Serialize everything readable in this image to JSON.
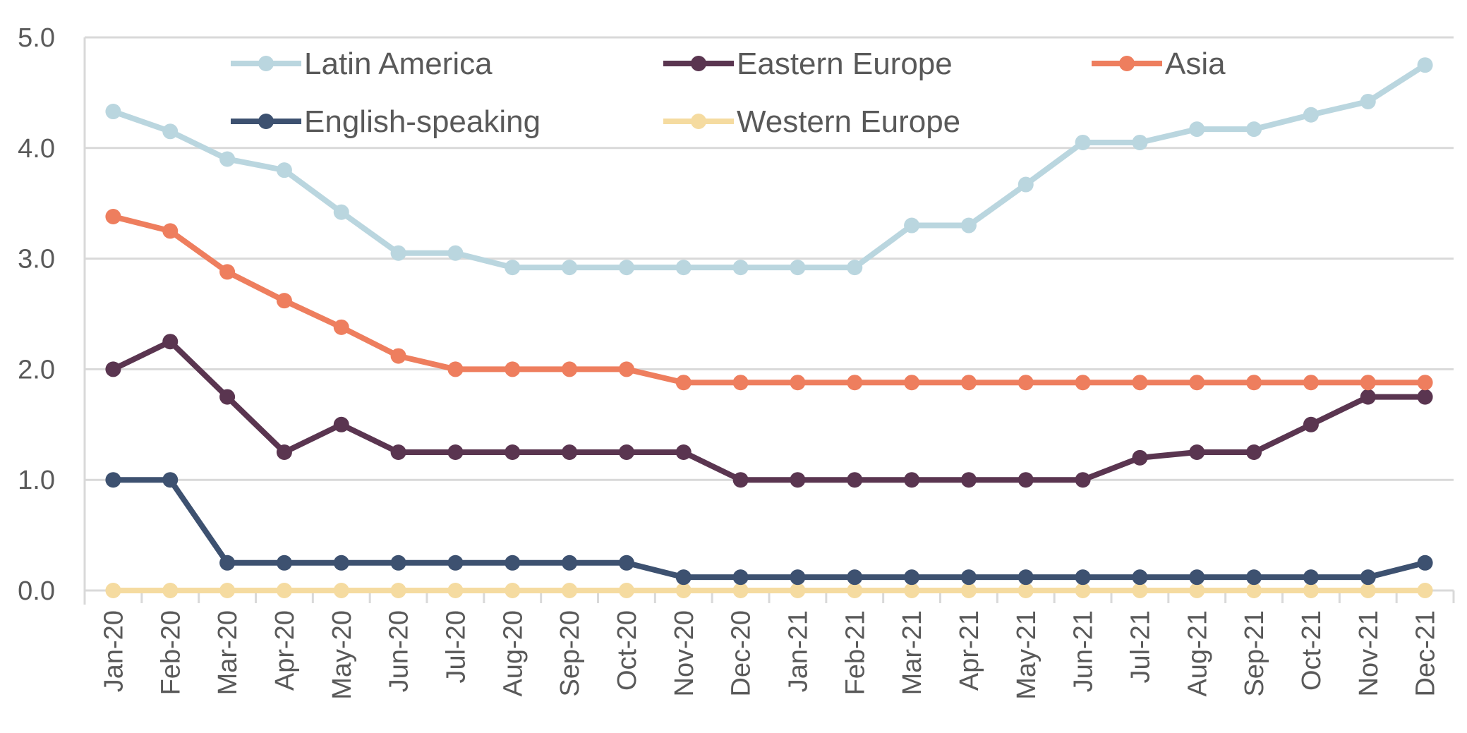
{
  "chart_data": {
    "type": "line",
    "categories": [
      "Jan-20",
      "Feb-20",
      "Mar-20",
      "Apr-20",
      "May-20",
      "Jun-20",
      "Jul-20",
      "Aug-20",
      "Sep-20",
      "Oct-20",
      "Nov-20",
      "Dec-20",
      "Jan-21",
      "Feb-21",
      "Mar-21",
      "Apr-21",
      "May-21",
      "Jun-21",
      "Jul-21",
      "Aug-21",
      "Sep-21",
      "Oct-21",
      "Nov-21",
      "Dec-21"
    ],
    "ylim": [
      0,
      5
    ],
    "yticks": [
      "0.0",
      "1.0",
      "2.0",
      "3.0",
      "4.0",
      "5.0"
    ],
    "grid": true,
    "legend": "top",
    "series": [
      {
        "name": "Latin America",
        "color": "#BAD6DF",
        "values": [
          4.33,
          4.15,
          3.9,
          3.8,
          3.42,
          3.05,
          3.05,
          2.92,
          2.92,
          2.92,
          2.92,
          2.92,
          2.92,
          2.92,
          3.3,
          3.3,
          3.67,
          4.05,
          4.05,
          4.17,
          4.17,
          4.3,
          4.42,
          4.75
        ]
      },
      {
        "name": "Eastern Europe",
        "color": "#5A3550",
        "values": [
          2.0,
          2.25,
          1.75,
          1.25,
          1.5,
          1.25,
          1.25,
          1.25,
          1.25,
          1.25,
          1.25,
          1.0,
          1.0,
          1.0,
          1.0,
          1.0,
          1.0,
          1.0,
          1.2,
          1.25,
          1.25,
          1.5,
          1.75,
          1.75
        ]
      },
      {
        "name": "Asia",
        "color": "#EE7E5E",
        "values": [
          3.38,
          3.25,
          2.88,
          2.62,
          2.38,
          2.12,
          2.0,
          2.0,
          2.0,
          2.0,
          1.88,
          1.88,
          1.88,
          1.88,
          1.88,
          1.88,
          1.88,
          1.88,
          1.88,
          1.88,
          1.88,
          1.88,
          1.88,
          1.88
        ]
      },
      {
        "name": "English-speaking",
        "color": "#3D5170",
        "values": [
          1.0,
          1.0,
          0.25,
          0.25,
          0.25,
          0.25,
          0.25,
          0.25,
          0.25,
          0.25,
          0.12,
          0.12,
          0.12,
          0.12,
          0.12,
          0.12,
          0.12,
          0.12,
          0.12,
          0.12,
          0.12,
          0.12,
          0.12,
          0.25
        ]
      },
      {
        "name": "Western Europe",
        "color": "#F5DBA0",
        "values": [
          0,
          0,
          0,
          0,
          0,
          0,
          0,
          0,
          0,
          0,
          0,
          0,
          0,
          0,
          0,
          0,
          0,
          0,
          0,
          0,
          0,
          0,
          0,
          0
        ]
      }
    ]
  }
}
